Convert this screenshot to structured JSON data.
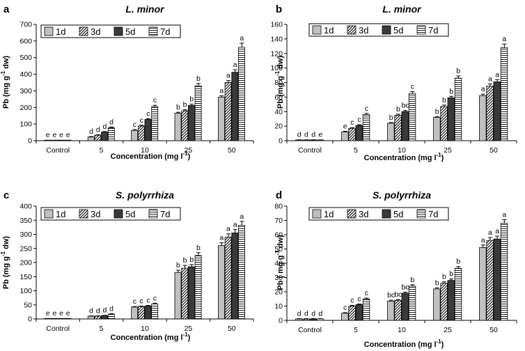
{
  "figure": {
    "xlabel": "Concentration (mg l",
    "xlabel_sup": "-1",
    "xlabel_end": ")",
    "ylabel": "Pb (mg g",
    "ylabel_sup": "-1",
    "ylabel_end": " dw)",
    "ylabel_alt": "Pb ( mg g",
    "legend": [
      "1d",
      "3d",
      "5d",
      "7d"
    ]
  },
  "chart_data": [
    {
      "panel": "a",
      "type": "bar",
      "title": "L. minor",
      "categories": [
        "Control",
        "5",
        "10",
        "25",
        "50"
      ],
      "ylim": [
        0,
        700
      ],
      "yticks": [
        0,
        100,
        200,
        300,
        400,
        500,
        600,
        700
      ],
      "series": [
        {
          "name": "1d",
          "values": [
            0,
            22,
            62,
            165,
            262
          ],
          "errors": [
            0,
            3,
            5,
            6,
            8
          ]
        },
        {
          "name": "3d",
          "values": [
            0,
            33,
            88,
            180,
            350
          ],
          "errors": [
            0,
            3,
            5,
            6,
            12
          ]
        },
        {
          "name": "5d",
          "values": [
            0,
            52,
            128,
            212,
            412
          ],
          "errors": [
            0,
            3,
            5,
            8,
            15
          ]
        },
        {
          "name": "7d",
          "values": [
            0,
            78,
            205,
            330,
            562
          ],
          "errors": [
            0,
            4,
            8,
            14,
            25
          ]
        }
      ],
      "letters": [
        [
          "e",
          "e",
          "e",
          "e"
        ],
        [
          "d",
          "d",
          "d",
          "d"
        ],
        [
          "c",
          "c",
          "c",
          "c"
        ],
        [
          "b",
          "b",
          "b",
          "b"
        ],
        [
          "a",
          "a",
          "a",
          "a"
        ]
      ]
    },
    {
      "panel": "b",
      "type": "bar",
      "title": "L. minor",
      "categories": [
        "Control",
        "5",
        "10",
        "25",
        "50"
      ],
      "ylim": [
        0,
        160
      ],
      "yticks": [
        0,
        20,
        40,
        60,
        80,
        100,
        120,
        140,
        160
      ],
      "series": [
        {
          "name": "1d",
          "values": [
            1,
            12,
            24,
            32,
            62
          ],
          "errors": [
            0.2,
            1,
            1,
            1,
            2
          ]
        },
        {
          "name": "3d",
          "values": [
            1,
            17,
            35,
            47,
            75
          ],
          "errors": [
            0.2,
            1,
            1.5,
            2,
            3
          ]
        },
        {
          "name": "5d",
          "values": [
            1,
            21,
            40,
            59,
            81
          ],
          "errors": [
            0.2,
            1,
            1.5,
            2,
            3
          ]
        },
        {
          "name": "7d",
          "values": [
            1,
            36,
            65,
            86,
            128
          ],
          "errors": [
            0.2,
            1.5,
            2.5,
            3,
            5
          ]
        }
      ],
      "letters": [
        [
          "d",
          "d",
          "d",
          "e"
        ],
        [
          "e",
          "c",
          "c",
          "c"
        ],
        [
          "b",
          "b",
          "bc",
          "c"
        ],
        [
          "b",
          "b",
          "b",
          "b"
        ],
        [
          "a",
          "a",
          "a",
          "a"
        ]
      ]
    },
    {
      "panel": "c",
      "type": "bar",
      "title": "S. polyrrhiza",
      "categories": [
        "Control",
        "5",
        "10",
        "25",
        "50"
      ],
      "ylim": [
        0,
        400
      ],
      "yticks": [
        0,
        50,
        100,
        150,
        200,
        250,
        300,
        350,
        400
      ],
      "series": [
        {
          "name": "1d",
          "values": [
            0,
            10,
            42,
            165,
            260
          ],
          "errors": [
            0,
            1,
            2,
            8,
            10
          ]
        },
        {
          "name": "3d",
          "values": [
            0,
            10,
            44,
            180,
            290
          ],
          "errors": [
            0,
            1,
            2,
            10,
            12
          ]
        },
        {
          "name": "5d",
          "values": [
            0,
            12,
            46,
            185,
            305
          ],
          "errors": [
            0,
            1,
            2,
            8,
            12
          ]
        },
        {
          "name": "7d",
          "values": [
            0,
            17,
            53,
            225,
            332
          ],
          "errors": [
            0,
            1.5,
            3,
            10,
            14
          ]
        }
      ],
      "letters": [
        [
          "e",
          "e",
          "e",
          "e"
        ],
        [
          "d",
          "d",
          "d",
          "d"
        ],
        [
          "c",
          "c",
          "c",
          "c"
        ],
        [
          "b",
          "b",
          "b",
          "b"
        ],
        [
          "a",
          "a",
          "a",
          "a"
        ]
      ]
    },
    {
      "panel": "d",
      "type": "bar",
      "title": "S. polyrrhiza",
      "categories": [
        "Control",
        "5",
        "10",
        "25",
        "50"
      ],
      "ylim": [
        0,
        80
      ],
      "yticks": [
        0,
        10,
        20,
        30,
        40,
        50,
        60,
        70,
        80
      ],
      "series": [
        {
          "name": "1d",
          "values": [
            1,
            5,
            13.5,
            22,
            51
          ],
          "errors": [
            0.2,
            0.4,
            0.6,
            0.8,
            1.8
          ]
        },
        {
          "name": "3d",
          "values": [
            1,
            10,
            14,
            26,
            56
          ],
          "errors": [
            0.2,
            0.5,
            0.6,
            1,
            2
          ]
        },
        {
          "name": "5d",
          "values": [
            1,
            11,
            19,
            28,
            57
          ],
          "errors": [
            0.2,
            0.5,
            0.8,
            1,
            2
          ]
        },
        {
          "name": "7d",
          "values": [
            1,
            15,
            24,
            36.5,
            68
          ],
          "errors": [
            0.2,
            0.6,
            1,
            1.2,
            2.5
          ]
        }
      ],
      "letters": [
        [
          "d",
          "d",
          "d",
          "d"
        ],
        [
          "c",
          "c",
          "c",
          "c"
        ],
        [
          "bc",
          "bc",
          "bc",
          "b"
        ],
        [
          "b",
          "b",
          "b",
          "b"
        ],
        [
          "a",
          "a",
          "a",
          "a"
        ]
      ]
    }
  ]
}
